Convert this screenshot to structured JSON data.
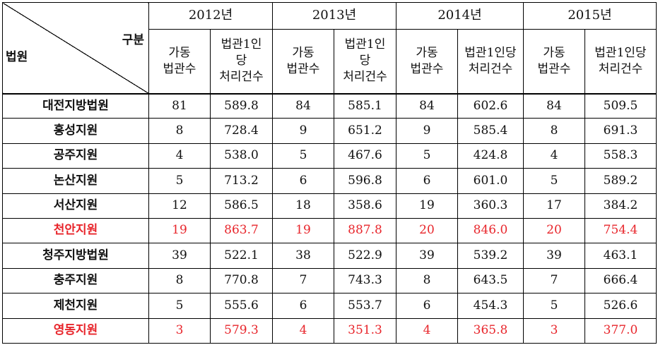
{
  "header": {
    "corner_top_right": "구분",
    "corner_bottom_left": "법원",
    "years": [
      "2012년",
      "2013년",
      "2014년",
      "2015년"
    ],
    "col_judges_lines": [
      "가동",
      "법관수"
    ],
    "col_per_judge_lines_2012": [
      "법관1인",
      "당",
      "처리건수"
    ],
    "col_per_judge_lines_2013": [
      "법관1인",
      "당",
      "처리건수"
    ],
    "col_per_judge_lines_2014": [
      "법관1인당",
      "처리건수"
    ],
    "col_per_judge_lines_2015": [
      "법관1인당",
      "처리건수"
    ]
  },
  "rows": [
    {
      "court": "대전지방법원",
      "highlight": false,
      "values": [
        "81",
        "589.8",
        "84",
        "585.1",
        "84",
        "602.6",
        "84",
        "509.5"
      ]
    },
    {
      "court": "홍성지원",
      "highlight": false,
      "values": [
        "8",
        "728.4",
        "9",
        "651.2",
        "9",
        "585.4",
        "8",
        "691.3"
      ]
    },
    {
      "court": "공주지원",
      "highlight": false,
      "values": [
        "4",
        "538.0",
        "5",
        "467.6",
        "5",
        "424.8",
        "4",
        "558.3"
      ]
    },
    {
      "court": "논산지원",
      "highlight": false,
      "values": [
        "5",
        "713.2",
        "6",
        "596.8",
        "6",
        "601.0",
        "5",
        "589.2"
      ]
    },
    {
      "court": "서산지원",
      "highlight": false,
      "values": [
        "12",
        "586.5",
        "18",
        "358.6",
        "19",
        "360.3",
        "17",
        "384.2"
      ]
    },
    {
      "court": "천안지원",
      "highlight": true,
      "values": [
        "19",
        "863.7",
        "19",
        "887.8",
        "20",
        "846.0",
        "20",
        "754.4"
      ]
    },
    {
      "court": "청주지방법원",
      "highlight": false,
      "values": [
        "39",
        "522.1",
        "38",
        "522.9",
        "39",
        "539.2",
        "39",
        "463.1"
      ]
    },
    {
      "court": "충주지원",
      "highlight": false,
      "values": [
        "8",
        "770.8",
        "7",
        "743.3",
        "8",
        "643.5",
        "7",
        "666.4"
      ]
    },
    {
      "court": "제천지원",
      "highlight": false,
      "values": [
        "5",
        "555.6",
        "6",
        "553.7",
        "6",
        "454.3",
        "5",
        "526.6"
      ]
    },
    {
      "court": "영동지원",
      "highlight": true,
      "values": [
        "3",
        "579.3",
        "4",
        "351.3",
        "4",
        "365.8",
        "3",
        "377.0"
      ]
    }
  ],
  "colors": {
    "text": "#111111",
    "highlight": "#e8252b",
    "border": "#000000",
    "background": "#ffffff"
  }
}
